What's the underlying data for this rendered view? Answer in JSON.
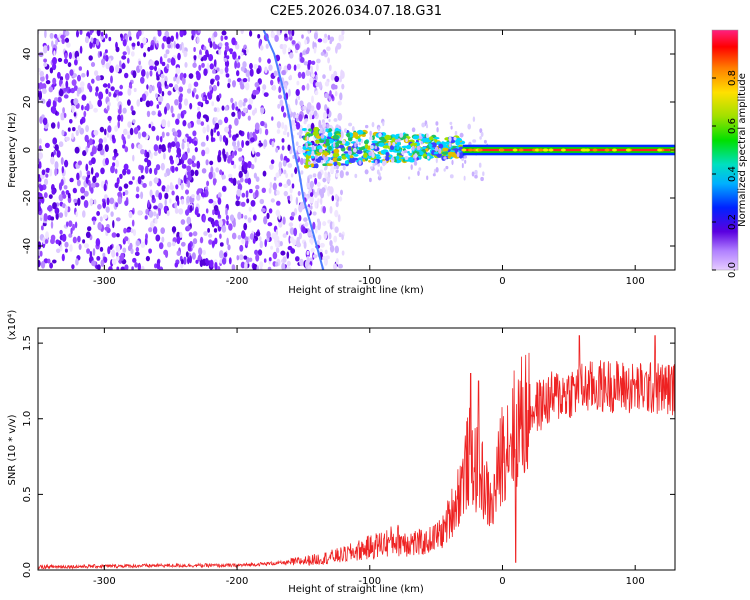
{
  "title": "C2E5.2026.034.07.18.G31",
  "chart_data": [
    {
      "type": "heatmap",
      "name": "spectrogram",
      "xlabel": "Height of straight line (km)",
      "ylabel": "Frequency (Hz)",
      "xlim": [
        -350,
        130
      ],
      "ylim": [
        -50,
        50
      ],
      "xticks": [
        -300,
        -200,
        -100,
        0,
        100
      ],
      "xtick_labels": [
        "-300",
        "-200",
        "-100",
        "0",
        "100"
      ],
      "yticks": [
        -40,
        -20,
        0,
        20,
        40
      ],
      "ytick_labels": [
        "-40",
        "-20",
        "0",
        "20",
        "40"
      ],
      "features": {
        "noise_region_end_km": -120,
        "signal_start_km": -150,
        "signal_tone_freq_hz": 0,
        "curve_points": [
          [
            -180,
            50
          ],
          [
            -172,
            40
          ],
          [
            -165,
            25
          ],
          [
            -160,
            12
          ],
          [
            -157,
            0
          ],
          [
            -153,
            -10
          ],
          [
            -150,
            -20
          ],
          [
            -145,
            -30
          ],
          [
            -140,
            -40
          ],
          [
            -135,
            -50
          ]
        ]
      },
      "colorbar": {
        "label": "Normalized spectral amplitude",
        "range": [
          0,
          1
        ],
        "ticks": [
          0.0,
          0.2,
          0.4,
          0.6,
          0.8
        ],
        "tick_labels": [
          "0.0",
          "0.2",
          "0.4",
          "0.6",
          "0.8"
        ]
      }
    },
    {
      "type": "line",
      "name": "snr",
      "xlabel": "Height of straight line (km)",
      "ylabel": "SNR (10 * v/v)",
      "scale_label": "(x10⁴)",
      "xlim": [
        -350,
        130
      ],
      "ylim": [
        0,
        1.6
      ],
      "xticks": [
        -300,
        -200,
        -100,
        0,
        100
      ],
      "xtick_labels": [
        "-300",
        "-200",
        "-100",
        "0",
        "100"
      ],
      "yticks": [
        0.0,
        0.5,
        1.0,
        1.5
      ],
      "ytick_labels": [
        "0.0",
        "0.5",
        "1.0",
        "1.5"
      ],
      "color": "#ee2222",
      "envelope": {
        "x": [
          -350,
          -250,
          -200,
          -160,
          -140,
          -120,
          -100,
          -80,
          -60,
          -45,
          -35,
          -25,
          -15,
          -8,
          0,
          10,
          20,
          40,
          60,
          80,
          100,
          130
        ],
        "y": [
          0.02,
          0.03,
          0.03,
          0.05,
          0.07,
          0.1,
          0.15,
          0.2,
          0.17,
          0.25,
          0.45,
          0.75,
          0.6,
          0.4,
          0.8,
          0.95,
          1.05,
          1.15,
          1.2,
          1.22,
          1.2,
          1.2
        ]
      },
      "notable_points": [
        [
          -24,
          1.3
        ],
        [
          -18,
          1.25
        ],
        [
          10,
          0.05
        ],
        [
          58,
          1.55
        ],
        [
          115,
          1.55
        ]
      ]
    }
  ]
}
